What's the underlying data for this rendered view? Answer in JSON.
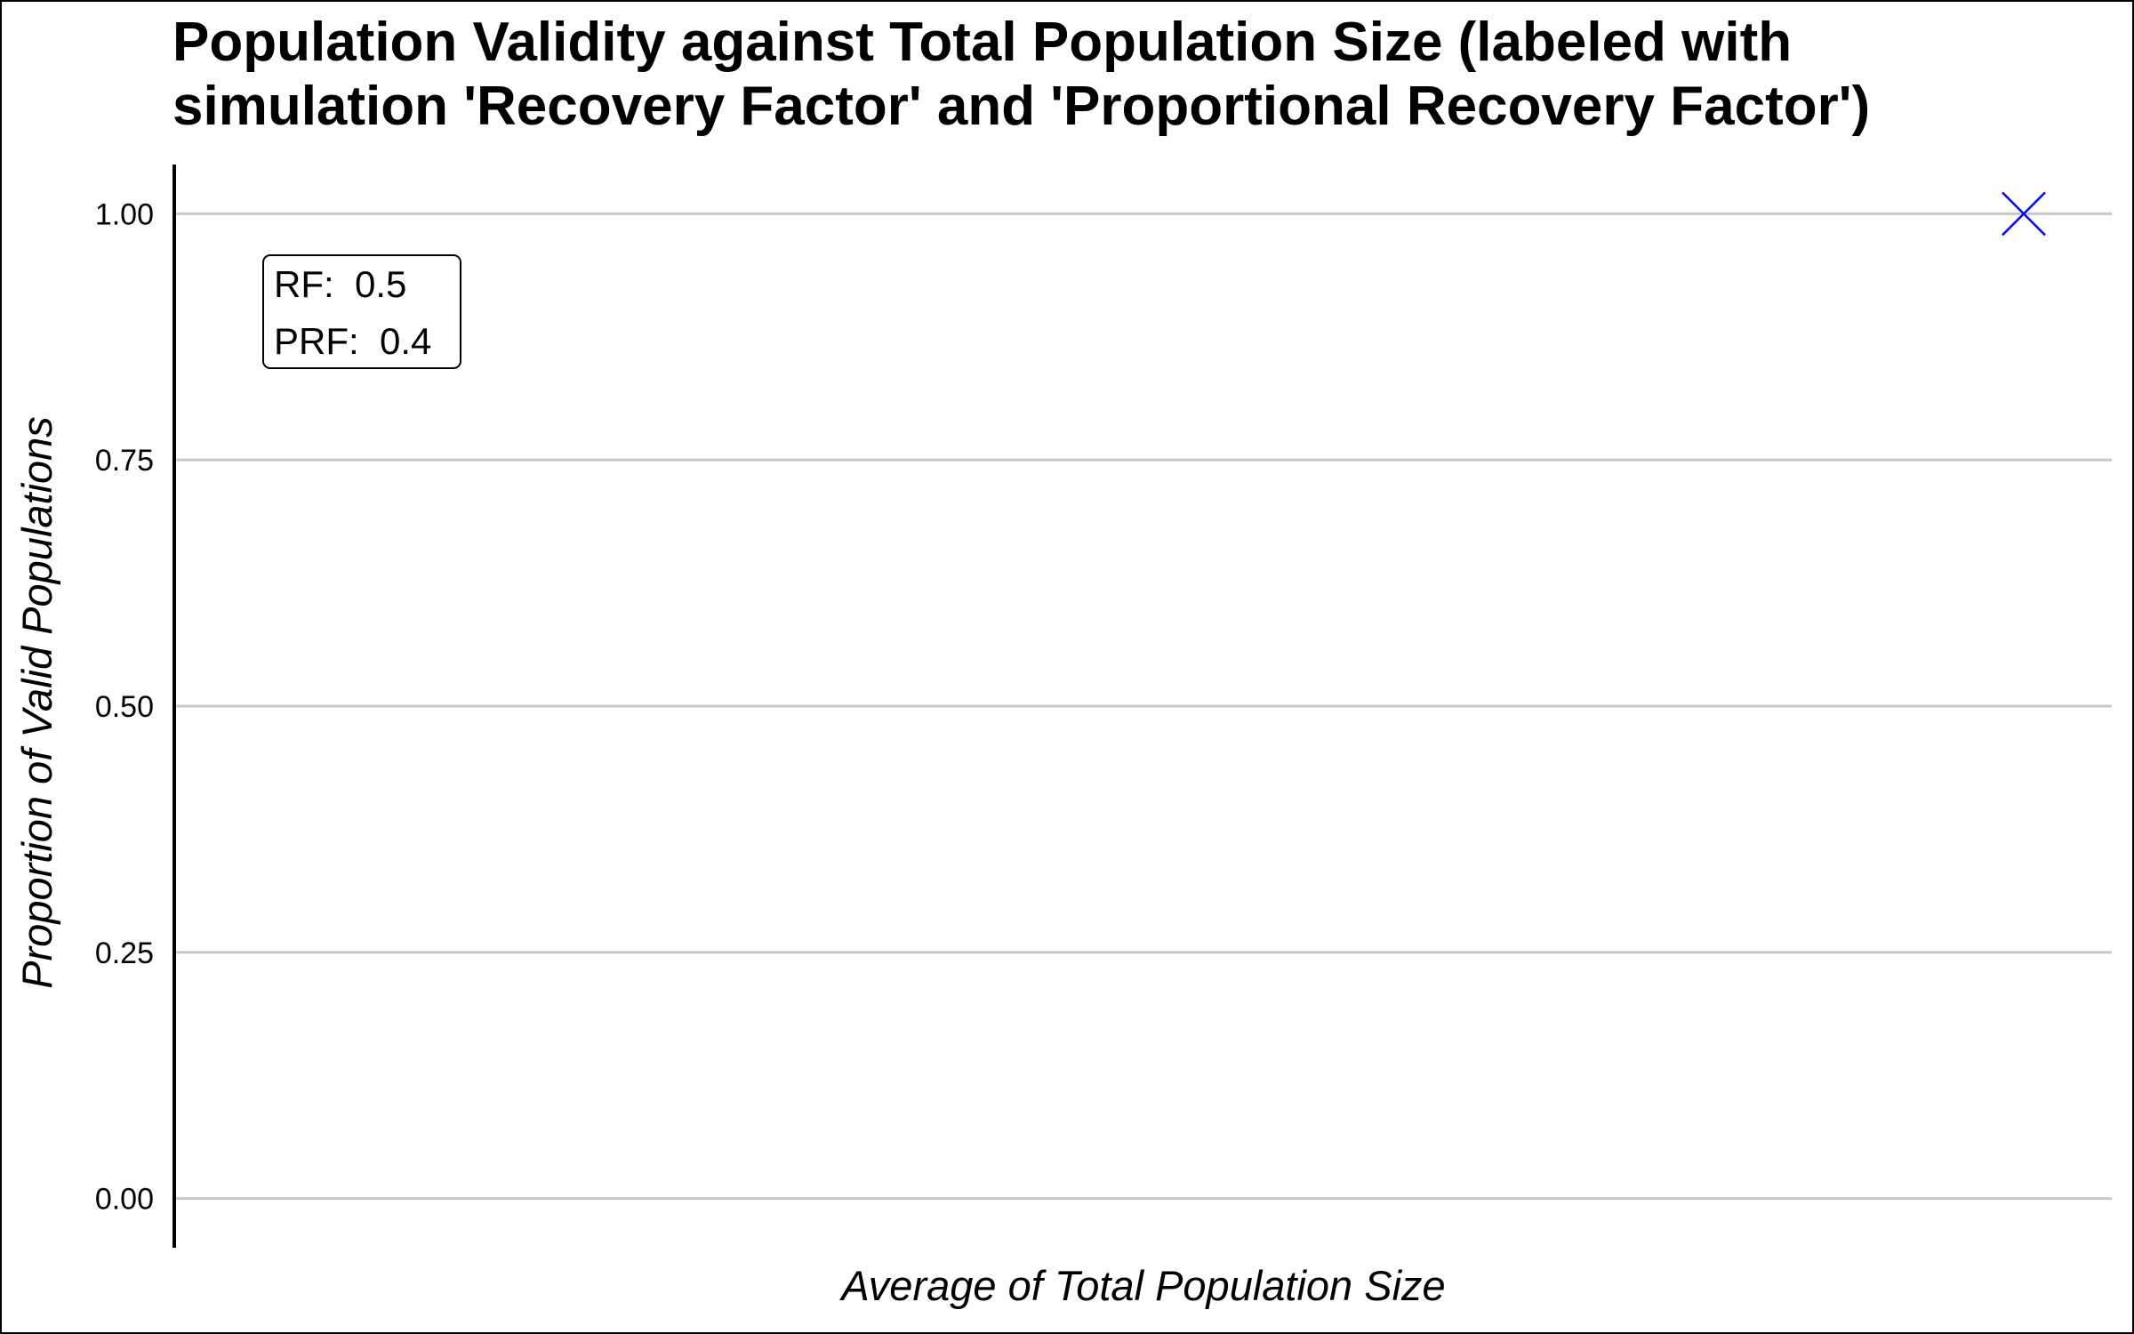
{
  "chart_data": {
    "type": "scatter",
    "title_lines": [
      "Population Validity against Total Population Size (labeled with",
      "simulation 'Recovery Factor' and 'Proportional Recovery Factor')"
    ],
    "xlabel": "Average of Total Population Size",
    "ylabel": "Proportion of Valid Populations",
    "ylim": [
      -0.05,
      1.05
    ],
    "y_ticks": [
      {
        "value": 0.0,
        "label": "0.00"
      },
      {
        "value": 0.25,
        "label": "0.25"
      },
      {
        "value": 0.5,
        "label": "0.50"
      },
      {
        "value": 0.75,
        "label": "0.75"
      },
      {
        "value": 1.0,
        "label": "1.00"
      }
    ],
    "x_ticks": [],
    "grid": "horizontal",
    "series": [
      {
        "marker": "x",
        "color": "#0000ff",
        "points": [
          {
            "y": 1.0
          }
        ]
      }
    ],
    "annotation": {
      "lines": [
        "RF:  0.5",
        "PRF:  0.4"
      ],
      "placement": "top-left"
    }
  },
  "colors": {
    "grid": "#c8c8c8",
    "axis": "#000000",
    "marker": "#0000ff"
  }
}
